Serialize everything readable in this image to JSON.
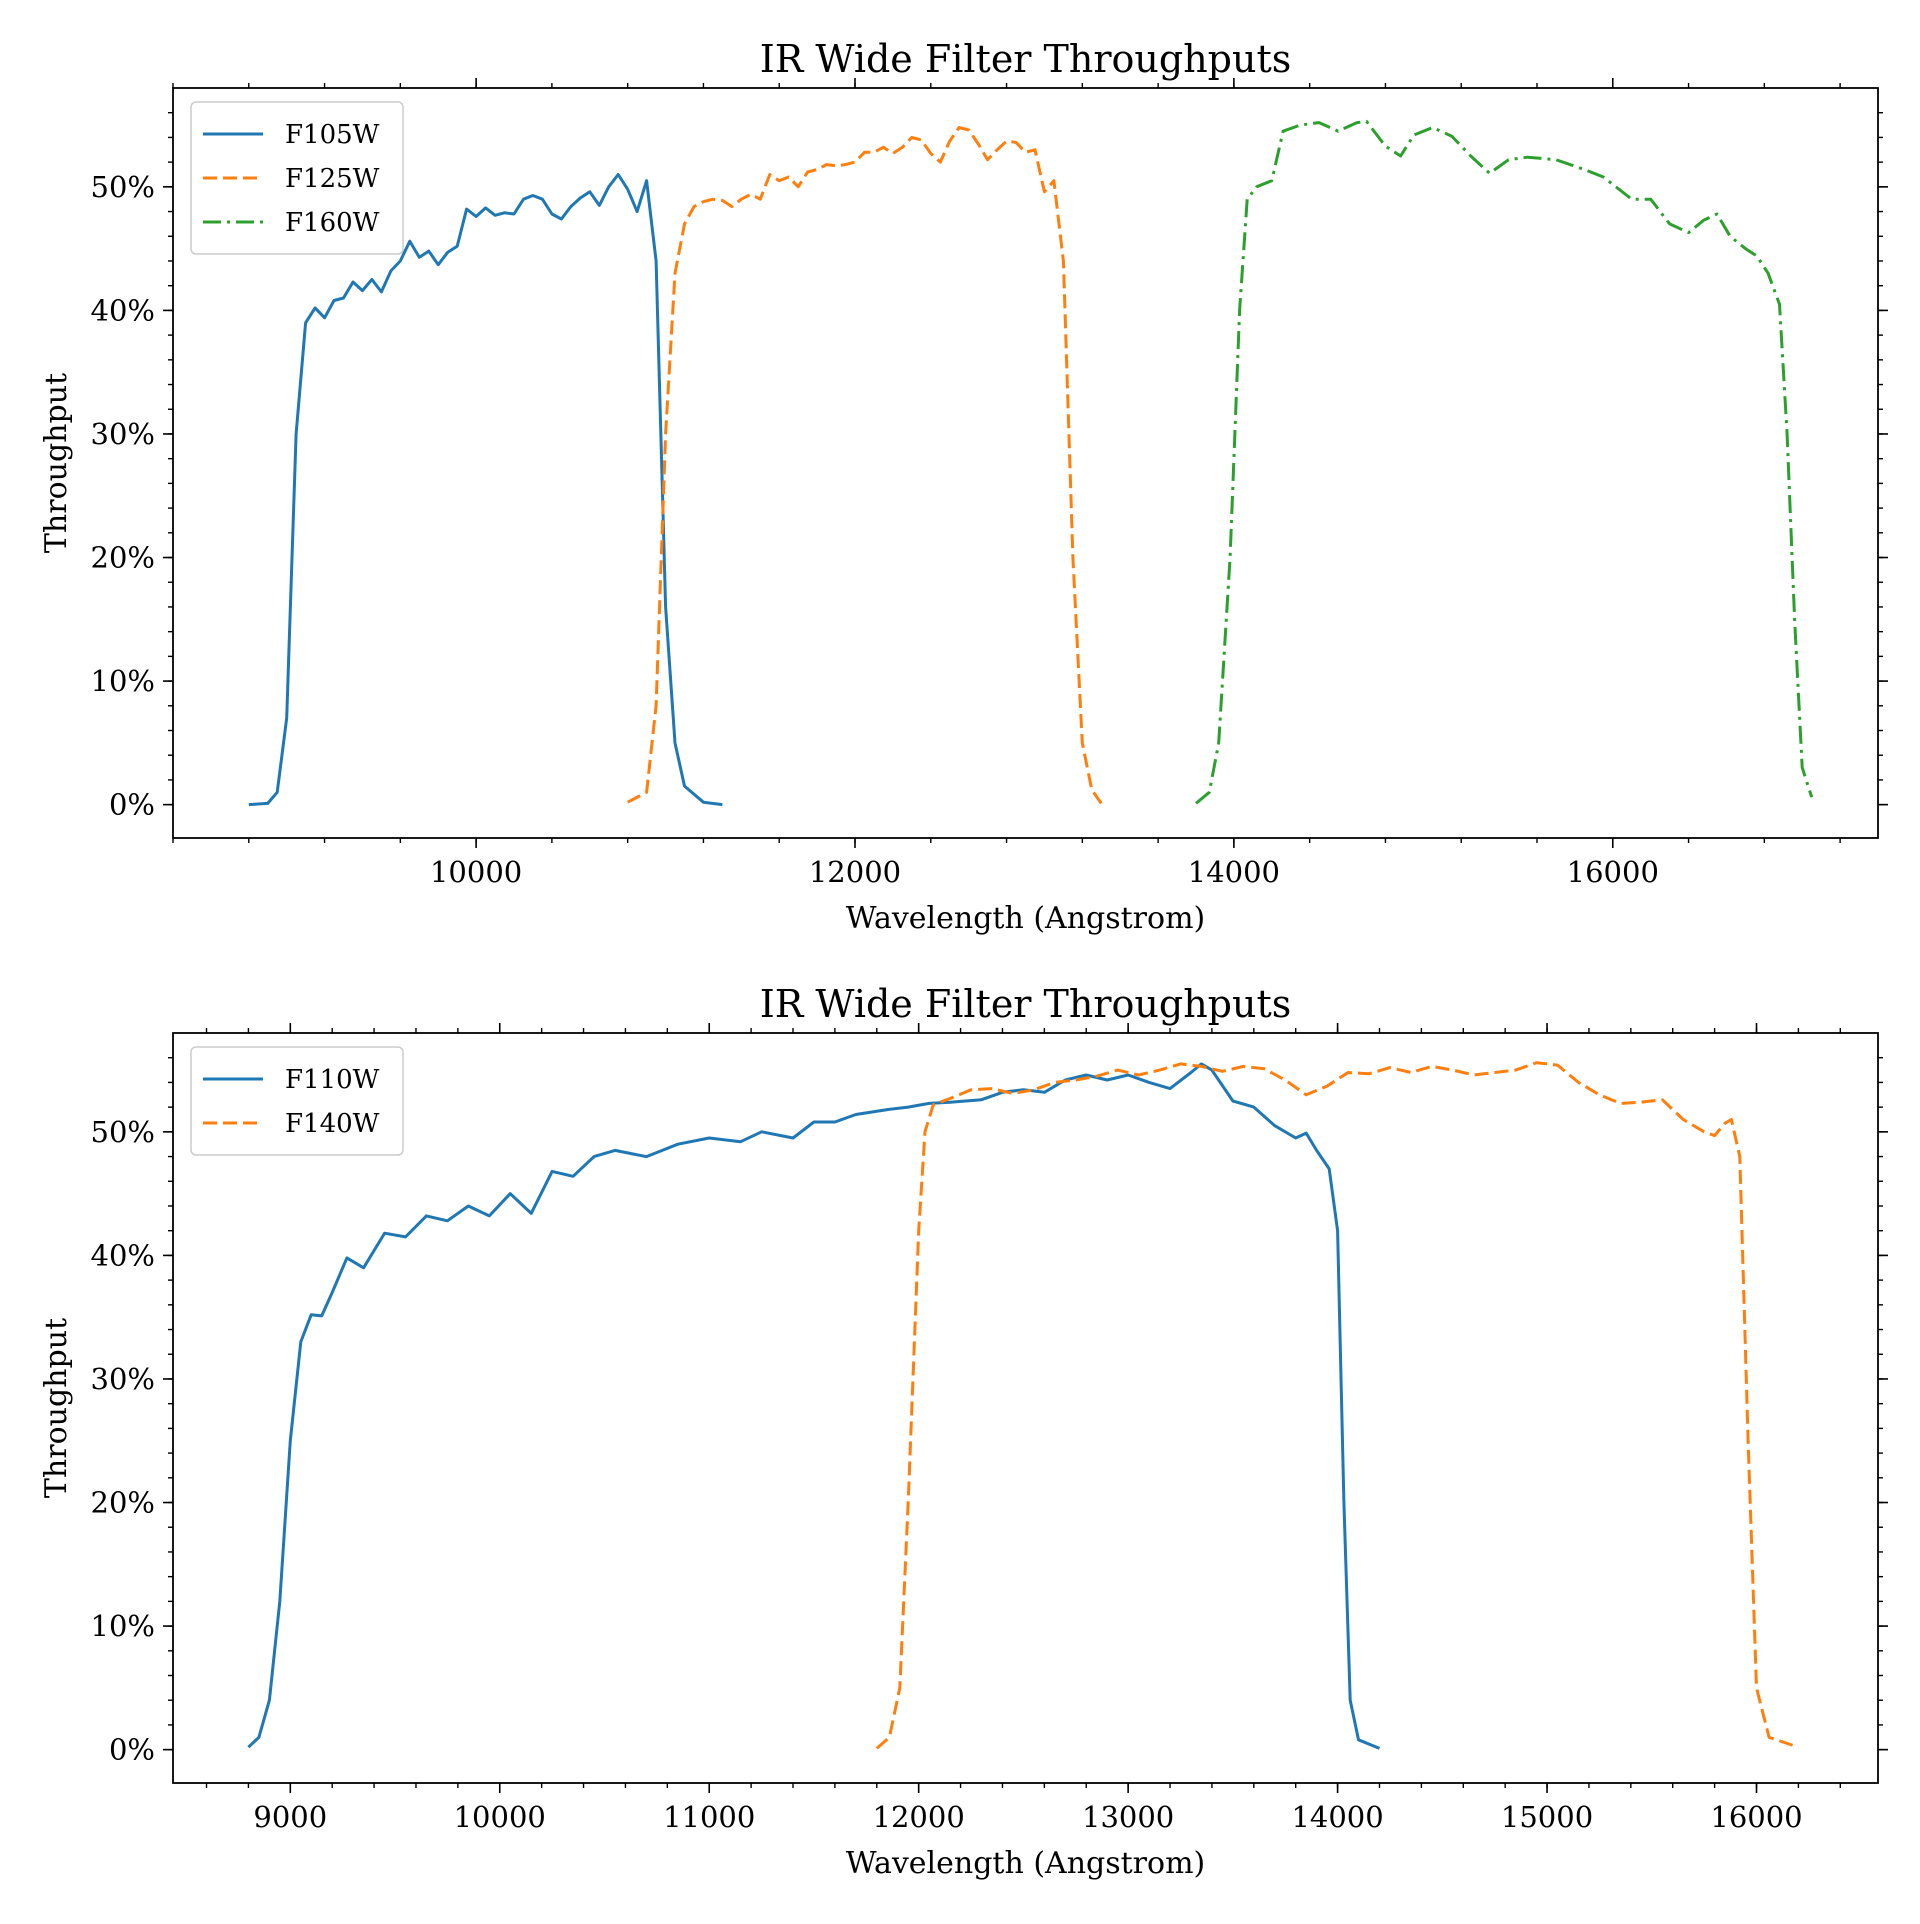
{
  "chart_data": [
    {
      "type": "line",
      "title": "IR Wide Filter Throughputs",
      "xlabel": "Wavelength (Angstrom)",
      "ylabel": "Throughput",
      "xlim": [
        8400,
        17400
      ],
      "ylim": [
        -0.027,
        0.58
      ],
      "xticks": [
        10000,
        12000,
        14000,
        16000
      ],
      "xtick_labels": [
        "10000",
        "12000",
        "14000",
        "16000"
      ],
      "yticks": [
        0,
        0.1,
        0.2,
        0.3,
        0.4,
        0.5
      ],
      "ytick_labels": [
        "0%",
        "10%",
        "20%",
        "30%",
        "40%",
        "50%"
      ],
      "grid": false,
      "legend_position": "top-left",
      "series": [
        {
          "name": "F105W",
          "color": "#1f77b4",
          "style": "solid",
          "points": [
            [
              8800,
              0.0
            ],
            [
              8900,
              0.001
            ],
            [
              8950,
              0.01
            ],
            [
              9000,
              0.07
            ],
            [
              9050,
              0.3
            ],
            [
              9100,
              0.39
            ],
            [
              9150,
              0.402
            ],
            [
              9200,
              0.394
            ],
            [
              9250,
              0.408
            ],
            [
              9300,
              0.41
            ],
            [
              9350,
              0.423
            ],
            [
              9400,
              0.416
            ],
            [
              9450,
              0.425
            ],
            [
              9500,
              0.415
            ],
            [
              9550,
              0.432
            ],
            [
              9600,
              0.44
            ],
            [
              9650,
              0.456
            ],
            [
              9700,
              0.443
            ],
            [
              9750,
              0.448
            ],
            [
              9800,
              0.437
            ],
            [
              9850,
              0.447
            ],
            [
              9900,
              0.452
            ],
            [
              9950,
              0.482
            ],
            [
              10000,
              0.476
            ],
            [
              10050,
              0.483
            ],
            [
              10100,
              0.477
            ],
            [
              10150,
              0.479
            ],
            [
              10200,
              0.478
            ],
            [
              10250,
              0.49
            ],
            [
              10300,
              0.493
            ],
            [
              10350,
              0.49
            ],
            [
              10400,
              0.478
            ],
            [
              10450,
              0.474
            ],
            [
              10500,
              0.484
            ],
            [
              10550,
              0.491
            ],
            [
              10600,
              0.496
            ],
            [
              10650,
              0.485
            ],
            [
              10700,
              0.5
            ],
            [
              10750,
              0.51
            ],
            [
              10800,
              0.498
            ],
            [
              10850,
              0.48
            ],
            [
              10900,
              0.505
            ],
            [
              10950,
              0.44
            ],
            [
              11000,
              0.16
            ],
            [
              11050,
              0.05
            ],
            [
              11100,
              0.015
            ],
            [
              11200,
              0.002
            ],
            [
              11300,
              0.0
            ]
          ]
        },
        {
          "name": "F125W",
          "color": "#ff7f0e",
          "style": "dashed",
          "points": [
            [
              10800,
              0.002
            ],
            [
              10900,
              0.01
            ],
            [
              10950,
              0.08
            ],
            [
              11000,
              0.3
            ],
            [
              11050,
              0.43
            ],
            [
              11100,
              0.47
            ],
            [
              11150,
              0.484
            ],
            [
              11200,
              0.488
            ],
            [
              11250,
              0.49
            ],
            [
              11300,
              0.489
            ],
            [
              11350,
              0.484
            ],
            [
              11400,
              0.49
            ],
            [
              11450,
              0.494
            ],
            [
              11500,
              0.49
            ],
            [
              11550,
              0.51
            ],
            [
              11600,
              0.505
            ],
            [
              11650,
              0.508
            ],
            [
              11700,
              0.5
            ],
            [
              11750,
              0.512
            ],
            [
              11800,
              0.514
            ],
            [
              11850,
              0.518
            ],
            [
              11900,
              0.517
            ],
            [
              11950,
              0.518
            ],
            [
              12000,
              0.52
            ],
            [
              12050,
              0.528
            ],
            [
              12100,
              0.528
            ],
            [
              12150,
              0.532
            ],
            [
              12200,
              0.527
            ],
            [
              12250,
              0.532
            ],
            [
              12300,
              0.54
            ],
            [
              12350,
              0.538
            ],
            [
              12400,
              0.527
            ],
            [
              12450,
              0.52
            ],
            [
              12500,
              0.537
            ],
            [
              12550,
              0.548
            ],
            [
              12600,
              0.546
            ],
            [
              12650,
              0.535
            ],
            [
              12700,
              0.522
            ],
            [
              12750,
              0.53
            ],
            [
              12800,
              0.537
            ],
            [
              12850,
              0.536
            ],
            [
              12900,
              0.528
            ],
            [
              12950,
              0.53
            ],
            [
              13000,
              0.496
            ],
            [
              13050,
              0.505
            ],
            [
              13100,
              0.44
            ],
            [
              13150,
              0.2
            ],
            [
              13200,
              0.05
            ],
            [
              13250,
              0.012
            ],
            [
              13300,
              0.001
            ]
          ]
        },
        {
          "name": "F160W",
          "color": "#2ca02c",
          "style": "dashdot",
          "points": [
            [
              13800,
              0.001
            ],
            [
              13870,
              0.01
            ],
            [
              13920,
              0.05
            ],
            [
              13980,
              0.2
            ],
            [
              14030,
              0.4
            ],
            [
              14070,
              0.49
            ],
            [
              14120,
              0.5
            ],
            [
              14200,
              0.505
            ],
            [
              14260,
              0.545
            ],
            [
              14350,
              0.55
            ],
            [
              14450,
              0.552
            ],
            [
              14550,
              0.545
            ],
            [
              14650,
              0.552
            ],
            [
              14700,
              0.553
            ],
            [
              14800,
              0.533
            ],
            [
              14880,
              0.525
            ],
            [
              14950,
              0.542
            ],
            [
              15050,
              0.548
            ],
            [
              15150,
              0.541
            ],
            [
              15250,
              0.525
            ],
            [
              15350,
              0.511
            ],
            [
              15450,
              0.522
            ],
            [
              15550,
              0.524
            ],
            [
              15700,
              0.522
            ],
            [
              15850,
              0.514
            ],
            [
              15950,
              0.508
            ],
            [
              16100,
              0.49
            ],
            [
              16200,
              0.49
            ],
            [
              16300,
              0.47
            ],
            [
              16400,
              0.463
            ],
            [
              16480,
              0.473
            ],
            [
              16550,
              0.478
            ],
            [
              16620,
              0.46
            ],
            [
              16700,
              0.45
            ],
            [
              16760,
              0.444
            ],
            [
              16820,
              0.43
            ],
            [
              16880,
              0.405
            ],
            [
              16920,
              0.3
            ],
            [
              16960,
              0.15
            ],
            [
              17000,
              0.03
            ],
            [
              17050,
              0.006
            ]
          ]
        }
      ]
    },
    {
      "type": "line",
      "title": "IR Wide Filter Throughputs",
      "xlabel": "Wavelength (Angstrom)",
      "ylabel": "Throughput",
      "xlim": [
        8440,
        16580
      ],
      "ylim": [
        -0.027,
        0.58
      ],
      "xticks": [
        9000,
        10000,
        11000,
        12000,
        13000,
        14000,
        15000,
        16000
      ],
      "xtick_labels": [
        "9000",
        "10000",
        "11000",
        "12000",
        "13000",
        "14000",
        "15000",
        "16000"
      ],
      "yticks": [
        0,
        0.1,
        0.2,
        0.3,
        0.4,
        0.5
      ],
      "ytick_labels": [
        "0%",
        "10%",
        "20%",
        "30%",
        "40%",
        "50%"
      ],
      "grid": false,
      "legend_position": "top-left",
      "series": [
        {
          "name": "F110W",
          "color": "#1f77b4",
          "style": "solid",
          "points": [
            [
              8800,
              0.002
            ],
            [
              8850,
              0.01
            ],
            [
              8900,
              0.04
            ],
            [
              8950,
              0.12
            ],
            [
              9000,
              0.25
            ],
            [
              9050,
              0.33
            ],
            [
              9100,
              0.352
            ],
            [
              9150,
              0.351
            ],
            [
              9200,
              0.37
            ],
            [
              9270,
              0.398
            ],
            [
              9350,
              0.39
            ],
            [
              9450,
              0.418
            ],
            [
              9550,
              0.415
            ],
            [
              9650,
              0.432
            ],
            [
              9750,
              0.428
            ],
            [
              9850,
              0.44
            ],
            [
              9950,
              0.432
            ],
            [
              10050,
              0.45
            ],
            [
              10150,
              0.434
            ],
            [
              10250,
              0.468
            ],
            [
              10350,
              0.464
            ],
            [
              10450,
              0.48
            ],
            [
              10550,
              0.485
            ],
            [
              10700,
              0.48
            ],
            [
              10850,
              0.49
            ],
            [
              11000,
              0.495
            ],
            [
              11150,
              0.492
            ],
            [
              11250,
              0.5
            ],
            [
              11400,
              0.495
            ],
            [
              11500,
              0.508
            ],
            [
              11600,
              0.508
            ],
            [
              11700,
              0.514
            ],
            [
              11850,
              0.518
            ],
            [
              11950,
              0.52
            ],
            [
              12050,
              0.523
            ],
            [
              12150,
              0.524
            ],
            [
              12300,
              0.526
            ],
            [
              12400,
              0.532
            ],
            [
              12500,
              0.534
            ],
            [
              12600,
              0.532
            ],
            [
              12700,
              0.542
            ],
            [
              12800,
              0.546
            ],
            [
              12900,
              0.542
            ],
            [
              13000,
              0.546
            ],
            [
              13100,
              0.54
            ],
            [
              13200,
              0.535
            ],
            [
              13300,
              0.548
            ],
            [
              13350,
              0.555
            ],
            [
              13400,
              0.55
            ],
            [
              13500,
              0.525
            ],
            [
              13600,
              0.52
            ],
            [
              13700,
              0.505
            ],
            [
              13800,
              0.495
            ],
            [
              13850,
              0.499
            ],
            [
              13900,
              0.485
            ],
            [
              13960,
              0.47
            ],
            [
              14000,
              0.42
            ],
            [
              14030,
              0.2
            ],
            [
              14060,
              0.04
            ],
            [
              14100,
              0.008
            ],
            [
              14200,
              0.001
            ]
          ]
        },
        {
          "name": "F140W",
          "color": "#ff7f0e",
          "style": "dashed",
          "points": [
            [
              11800,
              0.001
            ],
            [
              11860,
              0.01
            ],
            [
              11910,
              0.05
            ],
            [
              11950,
              0.2
            ],
            [
              12000,
              0.42
            ],
            [
              12030,
              0.5
            ],
            [
              12070,
              0.522
            ],
            [
              12150,
              0.527
            ],
            [
              12250,
              0.534
            ],
            [
              12350,
              0.535
            ],
            [
              12450,
              0.531
            ],
            [
              12550,
              0.534
            ],
            [
              12650,
              0.54
            ],
            [
              12750,
              0.542
            ],
            [
              12850,
              0.545
            ],
            [
              12950,
              0.55
            ],
            [
              13050,
              0.546
            ],
            [
              13150,
              0.55
            ],
            [
              13250,
              0.555
            ],
            [
              13350,
              0.553
            ],
            [
              13450,
              0.549
            ],
            [
              13550,
              0.553
            ],
            [
              13650,
              0.551
            ],
            [
              13750,
              0.542
            ],
            [
              13850,
              0.53
            ],
            [
              13950,
              0.537
            ],
            [
              14050,
              0.548
            ],
            [
              14150,
              0.547
            ],
            [
              14250,
              0.552
            ],
            [
              14350,
              0.548
            ],
            [
              14450,
              0.553
            ],
            [
              14550,
              0.55
            ],
            [
              14650,
              0.546
            ],
            [
              14750,
              0.548
            ],
            [
              14850,
              0.55
            ],
            [
              14950,
              0.556
            ],
            [
              15050,
              0.554
            ],
            [
              15150,
              0.54
            ],
            [
              15250,
              0.53
            ],
            [
              15350,
              0.523
            ],
            [
              15450,
              0.524
            ],
            [
              15550,
              0.526
            ],
            [
              15650,
              0.51
            ],
            [
              15750,
              0.5
            ],
            [
              15800,
              0.497
            ],
            [
              15850,
              0.507
            ],
            [
              15880,
              0.51
            ],
            [
              15920,
              0.48
            ],
            [
              15960,
              0.25
            ],
            [
              16000,
              0.05
            ],
            [
              16060,
              0.01
            ],
            [
              16200,
              0.002
            ]
          ]
        }
      ]
    }
  ]
}
